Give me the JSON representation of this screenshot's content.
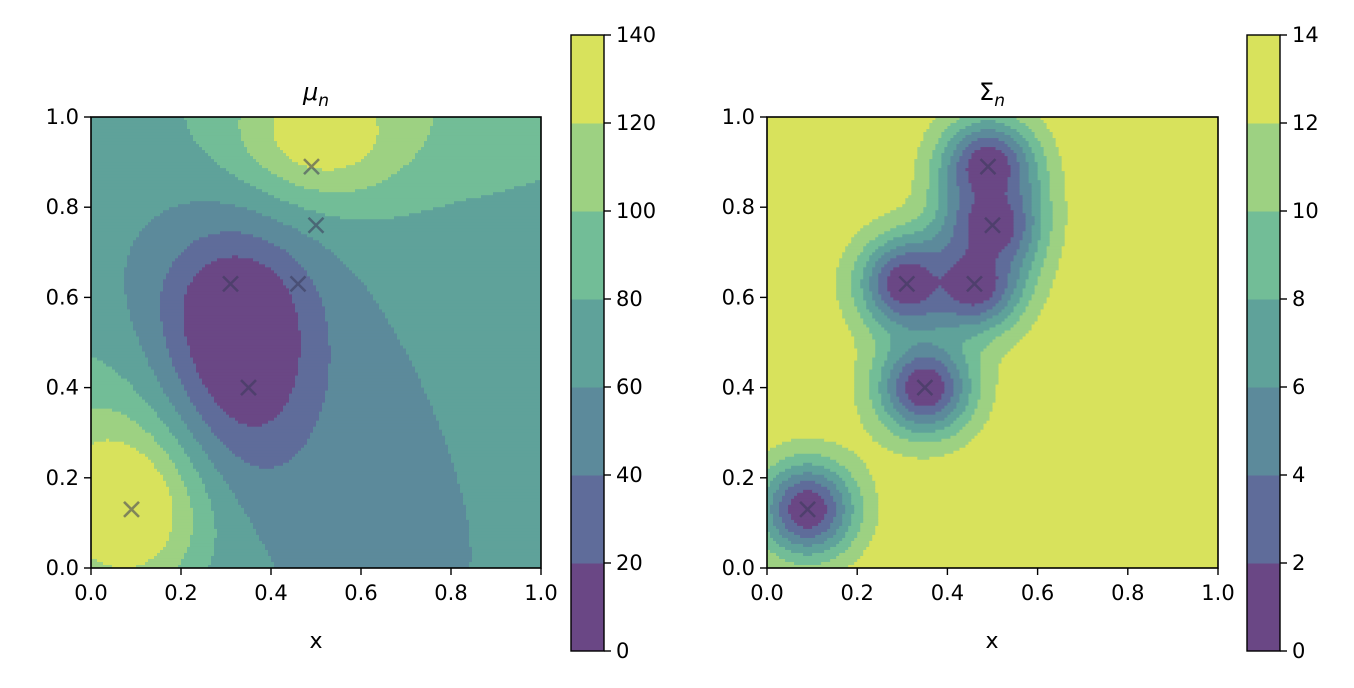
{
  "chart_data": [
    {
      "type": "contour",
      "title": "μn",
      "title_main": "μ",
      "title_sub": "n",
      "xlabel": "x",
      "ylabel": "",
      "xlim": [
        0.0,
        1.0
      ],
      "ylim": [
        0.0,
        1.0
      ],
      "xticks": [
        "0.0",
        "0.2",
        "0.4",
        "0.6",
        "0.8",
        "1.0"
      ],
      "yticks": [
        "0.0",
        "0.2",
        "0.4",
        "0.6",
        "0.8",
        "1.0"
      ],
      "levels": [
        0,
        20,
        40,
        60,
        80,
        100,
        120,
        140
      ],
      "colorbar_ticks": [
        "0",
        "20",
        "40",
        "60",
        "80",
        "100",
        "120",
        "140"
      ],
      "background_level": 60,
      "bumps": [
        {
          "x": 0.33,
          "y": 0.48,
          "amp": -70,
          "sx": 0.13,
          "sy": 0.2
        },
        {
          "x": 0.3,
          "y": 0.6,
          "amp": -15,
          "sx": 0.1,
          "sy": 0.08
        },
        {
          "x": 0.08,
          "y": 0.12,
          "amp": 75,
          "sx": 0.13,
          "sy": 0.14
        },
        {
          "x": 0.5,
          "y": 0.95,
          "amp": 50,
          "sx": 0.13,
          "sy": 0.1
        },
        {
          "x": 0.72,
          "y": 1.05,
          "amp": 35,
          "sx": 0.45,
          "sy": 0.22
        },
        {
          "x": 0.0,
          "y": 0.3,
          "amp": 28,
          "sx": 0.2,
          "sy": 0.2
        }
      ],
      "observations": [
        {
          "x": 0.09,
          "y": 0.13,
          "value": 130
        },
        {
          "x": 0.35,
          "y": 0.4,
          "value": 10
        },
        {
          "x": 0.31,
          "y": 0.63,
          "value": 40
        },
        {
          "x": 0.46,
          "y": 0.63,
          "value": 60
        },
        {
          "x": 0.5,
          "y": 0.76,
          "value": 70
        },
        {
          "x": 0.49,
          "y": 0.89,
          "value": 105
        }
      ]
    },
    {
      "type": "contour",
      "title": "Σn",
      "title_main": "Σ",
      "title_sub": "n",
      "xlabel": "x",
      "ylabel": "",
      "xlim": [
        0.0,
        1.0
      ],
      "ylim": [
        0.0,
        1.0
      ],
      "xticks": [
        "0.0",
        "0.2",
        "0.4",
        "0.6",
        "0.8",
        "1.0"
      ],
      "yticks": [
        "0.0",
        "0.2",
        "0.4",
        "0.6",
        "0.8",
        "1.0"
      ],
      "levels": [
        0,
        2,
        4,
        6,
        8,
        10,
        12,
        14
      ],
      "colorbar_ticks": [
        "0",
        "2",
        "4",
        "6",
        "8",
        "10",
        "12",
        "14"
      ],
      "background_level": 13.5,
      "observations": [
        {
          "x": 0.09,
          "y": 0.13
        },
        {
          "x": 0.35,
          "y": 0.4
        },
        {
          "x": 0.31,
          "y": 0.63
        },
        {
          "x": 0.46,
          "y": 0.63
        },
        {
          "x": 0.5,
          "y": 0.76
        },
        {
          "x": 0.49,
          "y": 0.89
        }
      ]
    }
  ],
  "colors": [
    "#6a4785",
    "#5f6c9a",
    "#5c8a9b",
    "#5fa29a",
    "#72bd97",
    "#9dd182",
    "#d8e25c"
  ],
  "marker_color": "#3a3a5a"
}
